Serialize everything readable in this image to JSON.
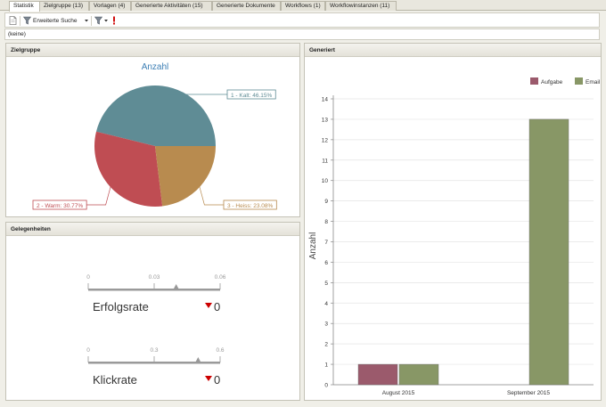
{
  "tabs": [
    {
      "label": "Statistik",
      "active": true
    },
    {
      "label": "Zielgruppe (13)",
      "active": false
    },
    {
      "label": "Vorlagen (4)",
      "active": false
    },
    {
      "label": "Generierte Aktivitäten (15)",
      "active": false
    },
    {
      "label": "Generierte Dokumente",
      "active": false
    },
    {
      "label": "Workflows (1)",
      "active": false
    },
    {
      "label": "Workflowinstanzen (11)",
      "active": false
    }
  ],
  "toolbar": {
    "icons": [
      "document-icon",
      "filter-icon",
      "filter-dropdown-icon",
      "exclamation-icon"
    ],
    "search_label": "Erweiterte Suche"
  },
  "filter": {
    "text": "(keine)"
  },
  "panels": {
    "zielgruppe": {
      "title": "Zielgruppe",
      "chart": {
        "type": "pie",
        "title": "Anzahl",
        "slices": [
          {
            "label": "1 - Kalt: 46.15%",
            "value": 46.15,
            "color": "#5f8c95"
          },
          {
            "label": "2 - Warm: 30.77%",
            "value": 30.77,
            "color": "#bf4d53"
          },
          {
            "label": "3 - Heiss: 23.08%",
            "value": 23.08,
            "color": "#b88b4f"
          }
        ]
      }
    },
    "gelegenheiten": {
      "title": "Gelegenheiten",
      "gauges": [
        {
          "label": "Erfolgsrate",
          "ticks": [
            "0",
            "0.03",
            "0.06"
          ],
          "min": 0,
          "max": 0.06,
          "marker": 0.04,
          "value": "0",
          "trend": "down",
          "trend_color": "#cc0000"
        },
        {
          "label": "Klickrate",
          "ticks": [
            "0",
            "0.3",
            "0.6"
          ],
          "min": 0,
          "max": 0.6,
          "marker": 0.5,
          "value": "0",
          "trend": "down",
          "trend_color": "#cc0000"
        }
      ]
    },
    "generiert": {
      "title": "Generiert",
      "chart": {
        "type": "bar",
        "ylabel": "Anzahl",
        "categories": [
          "August 2015",
          "September 2015"
        ],
        "ylim": [
          0,
          14
        ],
        "yticks": [
          "0",
          "1",
          "2",
          "3",
          "4",
          "5",
          "6",
          "7",
          "8",
          "9",
          "10",
          "11",
          "12",
          "13",
          "14"
        ],
        "grid": true,
        "legend_position": "top-right",
        "series": [
          {
            "name": "Aufgabe",
            "color": "#9b5a6c",
            "values": [
              1,
              0
            ]
          },
          {
            "name": "Email",
            "color": "#889766",
            "values": [
              1,
              13
            ]
          }
        ]
      }
    }
  }
}
